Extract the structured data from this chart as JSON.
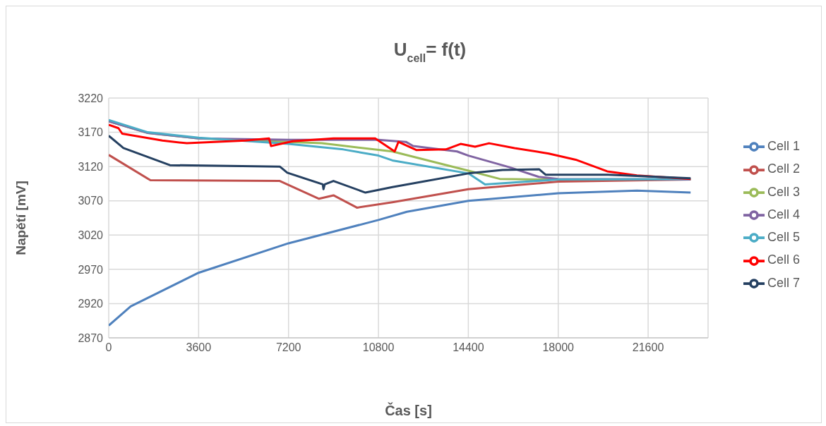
{
  "chart_data": {
    "type": "line",
    "title": "U$_{cell}$= f(t)",
    "xlabel": "Čas [s]",
    "ylabel": "Napětí [mV]",
    "xlim": [
      0,
      24000
    ],
    "xticks": [
      0,
      3600,
      7200,
      10800,
      14400,
      18000,
      21600
    ],
    "ylim": [
      2870,
      3220
    ],
    "yticks": [
      2870,
      2920,
      2970,
      3020,
      3070,
      3120,
      3170,
      3220
    ],
    "grid": true,
    "legend": "right",
    "series": [
      {
        "name": "Cell 1",
        "color": "#4f81bd",
        "x": [
          0,
          880,
          3600,
          7200,
          10800,
          11940,
          14400,
          18000,
          21150,
          23300
        ],
        "values": [
          2888,
          2916,
          2965,
          3008,
          3042,
          3054,
          3070,
          3081,
          3085,
          3082
        ]
      },
      {
        "name": "Cell 2",
        "color": "#c0504d",
        "x": [
          0,
          1670,
          6850,
          8420,
          9000,
          9940,
          11360,
          14400,
          18000,
          23300
        ],
        "values": [
          3137,
          3100,
          3099,
          3073,
          3078,
          3060,
          3068,
          3087,
          3098,
          3101
        ]
      },
      {
        "name": "Cell 3",
        "color": "#9bbb59",
        "x": [
          0,
          1570,
          3600,
          7200,
          8530,
          11360,
          14400,
          15660,
          17220,
          23300
        ],
        "values": [
          3186,
          3169,
          3161,
          3156,
          3154,
          3142,
          3114,
          3102,
          3101,
          3101
        ]
      },
      {
        "name": "Cell 4",
        "color": "#8064a2",
        "x": [
          0,
          1570,
          3600,
          7200,
          10800,
          11900,
          12190,
          13950,
          14400,
          16050,
          17220,
          18000,
          23300
        ],
        "values": [
          3186,
          3169,
          3161,
          3159,
          3159,
          3156,
          3150,
          3142,
          3136,
          3119,
          3105,
          3102,
          3101
        ]
      },
      {
        "name": "Cell 5",
        "color": "#4bacc6",
        "x": [
          0,
          1570,
          3600,
          7200,
          9390,
          10800,
          11360,
          14400,
          15070,
          18000,
          23300
        ],
        "values": [
          3188,
          3170,
          3162,
          3153,
          3145,
          3136,
          3129,
          3110,
          3094,
          3101,
          3102
        ]
      },
      {
        "name": "Cell 6",
        "color": "#ff0000",
        "x": [
          0,
          390,
          540,
          2150,
          3130,
          5480,
          6420,
          6500,
          7370,
          9000,
          10670,
          11450,
          11600,
          12330,
          13500,
          14090,
          14670,
          15230,
          16250,
          17620,
          18700,
          19960,
          21150,
          23300
        ],
        "values": [
          3181,
          3176,
          3168,
          3158,
          3154,
          3158,
          3161,
          3150,
          3157,
          3161,
          3161,
          3142,
          3156,
          3144,
          3145,
          3153,
          3149,
          3154,
          3147,
          3139,
          3130,
          3113,
          3107,
          3102
        ]
      },
      {
        "name": "Cell 7",
        "color": "#254061",
        "x": [
          0,
          590,
          2450,
          6850,
          7150,
          8570,
          8600,
          8650,
          9000,
          10280,
          11360,
          14400,
          15770,
          17240,
          17500,
          20000,
          23300
        ],
        "values": [
          3165,
          3147,
          3122,
          3120,
          3111,
          3094,
          3087,
          3094,
          3099,
          3082,
          3090,
          3110,
          3115,
          3116,
          3108,
          3108,
          3103
        ]
      }
    ]
  }
}
